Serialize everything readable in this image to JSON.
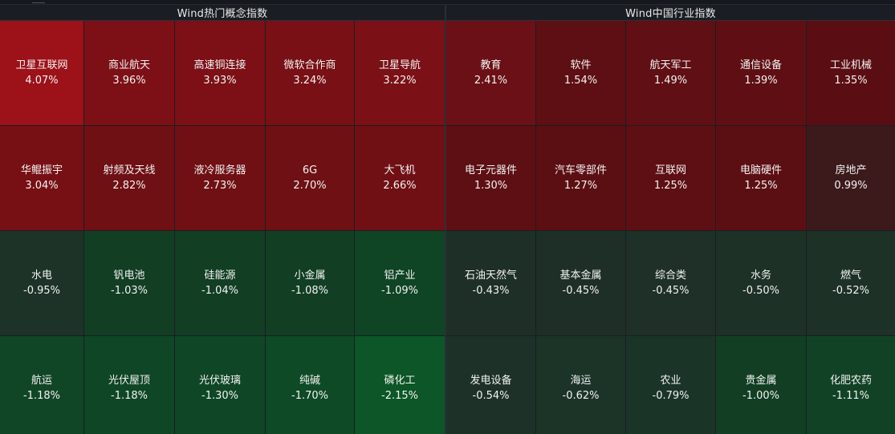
{
  "colors": {
    "strong_up": "#9b1016",
    "up": "#7a1015",
    "mild_up": "#5e0e13",
    "flat_up": "#3a1a1c",
    "flat_down": "#1f2f27",
    "down": "#0f4122",
    "strong_down": "#0c5627"
  },
  "left_panel": {
    "title": "Wind热门概念指数",
    "tiles": [
      {
        "name": "卫星互联网",
        "pct": "4.07%",
        "color": "#9d1118"
      },
      {
        "name": "商业航天",
        "pct": "3.96%",
        "color": "#7d1016"
      },
      {
        "name": "高速铜连接",
        "pct": "3.93%",
        "color": "#7c1016"
      },
      {
        "name": "微软合作商",
        "pct": "3.24%",
        "color": "#781015"
      },
      {
        "name": "卫星导航",
        "pct": "3.22%",
        "color": "#7b1016"
      },
      {
        "name": "华鲲振宇",
        "pct": "3.04%",
        "color": "#771015"
      },
      {
        "name": "射频及天线",
        "pct": "2.82%",
        "color": "#6f1014"
      },
      {
        "name": "液冷服务器",
        "pct": "2.73%",
        "color": "#701014"
      },
      {
        "name": "6G",
        "pct": "2.70%",
        "color": "#6e1014"
      },
      {
        "name": "大飞机",
        "pct": "2.66%",
        "color": "#701014"
      },
      {
        "name": "水电",
        "pct": "-0.95%",
        "color": "#1d3328"
      },
      {
        "name": "钒电池",
        "pct": "-1.03%",
        "color": "#123e24"
      },
      {
        "name": "硅能源",
        "pct": "-1.04%",
        "color": "#123e24"
      },
      {
        "name": "小金属",
        "pct": "-1.08%",
        "color": "#123f24"
      },
      {
        "name": "铝产业",
        "pct": "-1.09%",
        "color": "#0f4425"
      },
      {
        "name": "航运",
        "pct": "-1.18%",
        "color": "#104626"
      },
      {
        "name": "光伏屋顶",
        "pct": "-1.18%",
        "color": "#0f4626"
      },
      {
        "name": "光伏玻璃",
        "pct": "-1.30%",
        "color": "#0f4726"
      },
      {
        "name": "纯碱",
        "pct": "-1.70%",
        "color": "#0f4a27"
      },
      {
        "name": "磷化工",
        "pct": "-2.15%",
        "color": "#0c5627"
      }
    ]
  },
  "right_panel": {
    "title": "Wind中国行业指数",
    "tiles": [
      {
        "name": "教育",
        "pct": "2.41%",
        "color": "#6b1016"
      },
      {
        "name": "软件",
        "pct": "1.54%",
        "color": "#5e0f13"
      },
      {
        "name": "航天军工",
        "pct": "1.49%",
        "color": "#600f14"
      },
      {
        "name": "通信设备",
        "pct": "1.39%",
        "color": "#5f0f13"
      },
      {
        "name": "工业机械",
        "pct": "1.35%",
        "color": "#5a0e13"
      },
      {
        "name": "电子元器件",
        "pct": "1.30%",
        "color": "#5d0f13"
      },
      {
        "name": "汽车零部件",
        "pct": "1.27%",
        "color": "#5c0f13"
      },
      {
        "name": "互联网",
        "pct": "1.25%",
        "color": "#5e0f13"
      },
      {
        "name": "电脑硬件",
        "pct": "1.25%",
        "color": "#5c0f13"
      },
      {
        "name": "房地产",
        "pct": "0.99%",
        "color": "#3c1a1c"
      },
      {
        "name": "石油天然气",
        "pct": "-0.43%",
        "color": "#1e2f27"
      },
      {
        "name": "基本金属",
        "pct": "-0.45%",
        "color": "#1e2f27"
      },
      {
        "name": "综合类",
        "pct": "-0.45%",
        "color": "#1e3027"
      },
      {
        "name": "水务",
        "pct": "-0.50%",
        "color": "#1e3127"
      },
      {
        "name": "燃气",
        "pct": "-0.52%",
        "color": "#1e3127"
      },
      {
        "name": "发电设备",
        "pct": "-0.54%",
        "color": "#1d3128"
      },
      {
        "name": "海运",
        "pct": "-0.62%",
        "color": "#1c3328"
      },
      {
        "name": "农业",
        "pct": "-0.79%",
        "color": "#1b3428"
      },
      {
        "name": "贵金属",
        "pct": "-1.00%",
        "color": "#123f24"
      },
      {
        "name": "化肥农药",
        "pct": "-1.11%",
        "color": "#124226"
      }
    ]
  }
}
